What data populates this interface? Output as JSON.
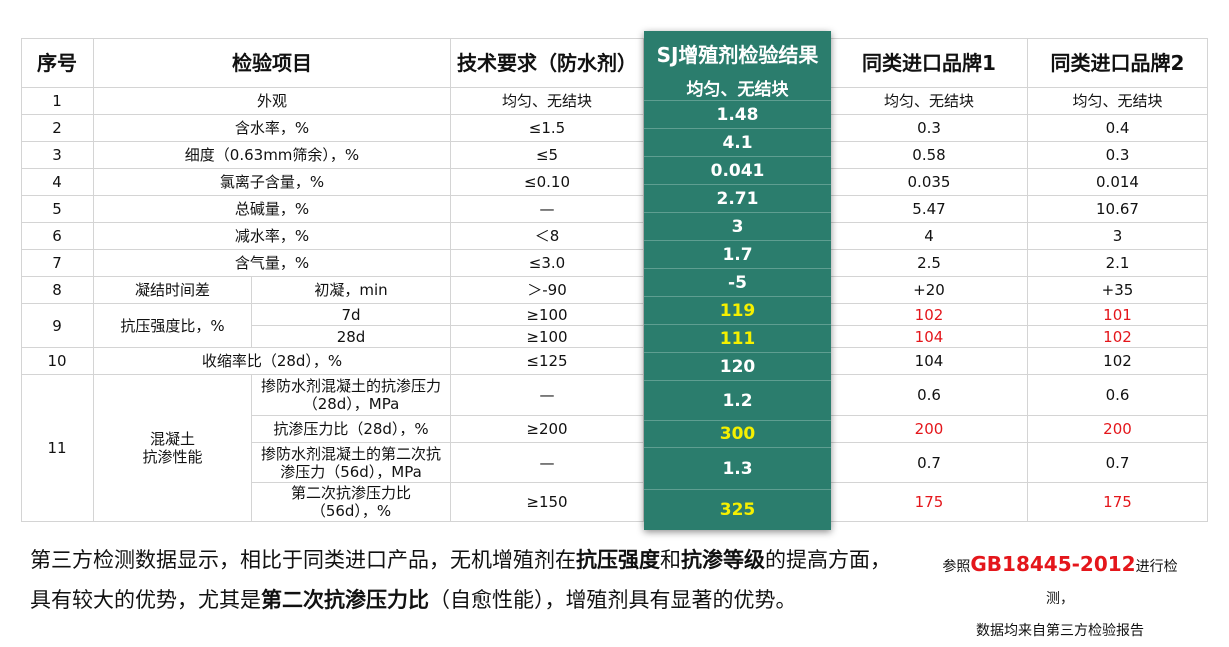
{
  "headers": {
    "seq": "序号",
    "item": "检验项目",
    "req": "技术要求（防水剂）",
    "sj": "SJ增殖剂检验结果",
    "b1": "同类进口品牌1",
    "b2": "同类进口品牌2"
  },
  "rows": {
    "r1": {
      "seq": "1",
      "item": "外观",
      "req": "均匀、无结块",
      "sj": "均匀、无结块",
      "b1": "均匀、无结块",
      "b2": "均匀、无结块"
    },
    "r2": {
      "seq": "2",
      "item": "含水率，%",
      "req": "≤1.5",
      "sj": "1.48",
      "b1": "0.3",
      "b2": "0.4"
    },
    "r3": {
      "seq": "3",
      "item": "细度（0.63mm筛余），%",
      "req": "≤5",
      "sj": "4.1",
      "b1": "0.58",
      "b2": "0.3"
    },
    "r4": {
      "seq": "4",
      "item": "氯离子含量，%",
      "req": "≤0.10",
      "sj": "0.041",
      "b1": "0.035",
      "b2": "0.014"
    },
    "r5": {
      "seq": "5",
      "item": "总碱量，%",
      "req": "—",
      "sj": "2.71",
      "b1": "5.47",
      "b2": "10.67"
    },
    "r6": {
      "seq": "6",
      "item": "减水率，%",
      "req": "＜8",
      "sj": "3",
      "b1": "4",
      "b2": "3"
    },
    "r7": {
      "seq": "7",
      "item": "含气量，%",
      "req": "≤3.0",
      "sj": "1.7",
      "b1": "2.5",
      "b2": "2.1"
    },
    "r8": {
      "seq": "8",
      "item": "凝结时间差",
      "sub": "初凝，min",
      "req": "＞-90",
      "sj": "-5",
      "b1": "+20",
      "b2": "+35"
    },
    "r9": {
      "seq": "9",
      "item": "抗压强度比，%",
      "sub_a": "7d",
      "req_a": "≥100",
      "sj_a": "119",
      "b1_a": "102",
      "b2_a": "101",
      "sub_b": "28d",
      "req_b": "≥100",
      "sj_b": "111",
      "b1_b": "104",
      "b2_b": "102"
    },
    "r10": {
      "seq": "10",
      "item": "收缩率比（28d），%",
      "req": "≤125",
      "sj": "120",
      "b1": "104",
      "b2": "102"
    },
    "r11": {
      "seq": "11",
      "item_l1": "混凝土",
      "item_l2": "抗渗性能",
      "s1_l1": "掺防水剂混凝土的抗渗压力",
      "s1_l2": "（28d），MPa",
      "req1": "—",
      "sj1": "1.2",
      "b1_1": "0.6",
      "b2_1": "0.6",
      "s2": "抗渗压力比（28d），%",
      "req2": "≥200",
      "sj2": "300",
      "b1_2": "200",
      "b2_2": "200",
      "s3_l1": "掺防水剂混凝土的第二次抗",
      "s3_l2": "渗压力（56d），MPa",
      "req3": "—",
      "sj3": "1.3",
      "b1_3": "0.7",
      "b2_3": "0.7",
      "s4_l1": "第二次抗渗压力比",
      "s4_l2": "（56d），%",
      "req4": "≥150",
      "sj4": "325",
      "b1_4": "175",
      "b2_4": "175"
    }
  },
  "summary": {
    "p1": "第三方检测数据显示，相比于同类进口产品，无机增殖剂在",
    "b1": "抗压强度",
    "p2": "和",
    "b2": "抗渗等级",
    "p3": "的提高方面，",
    "p4": "具有较大的优势，尤其是",
    "b3": "第二次抗渗压力比",
    "p5": "（自愈性能），增殖剂具有显著的优势。"
  },
  "reference": {
    "pre": "参照",
    "standard": "GB18445-2012",
    "post": "进行检测，",
    "line2": "数据均来自第三方检验报告"
  },
  "colors": {
    "highlight_bg": "#2b7d6d",
    "highlight_emph": "#f5f000",
    "red": "#e4161b"
  }
}
